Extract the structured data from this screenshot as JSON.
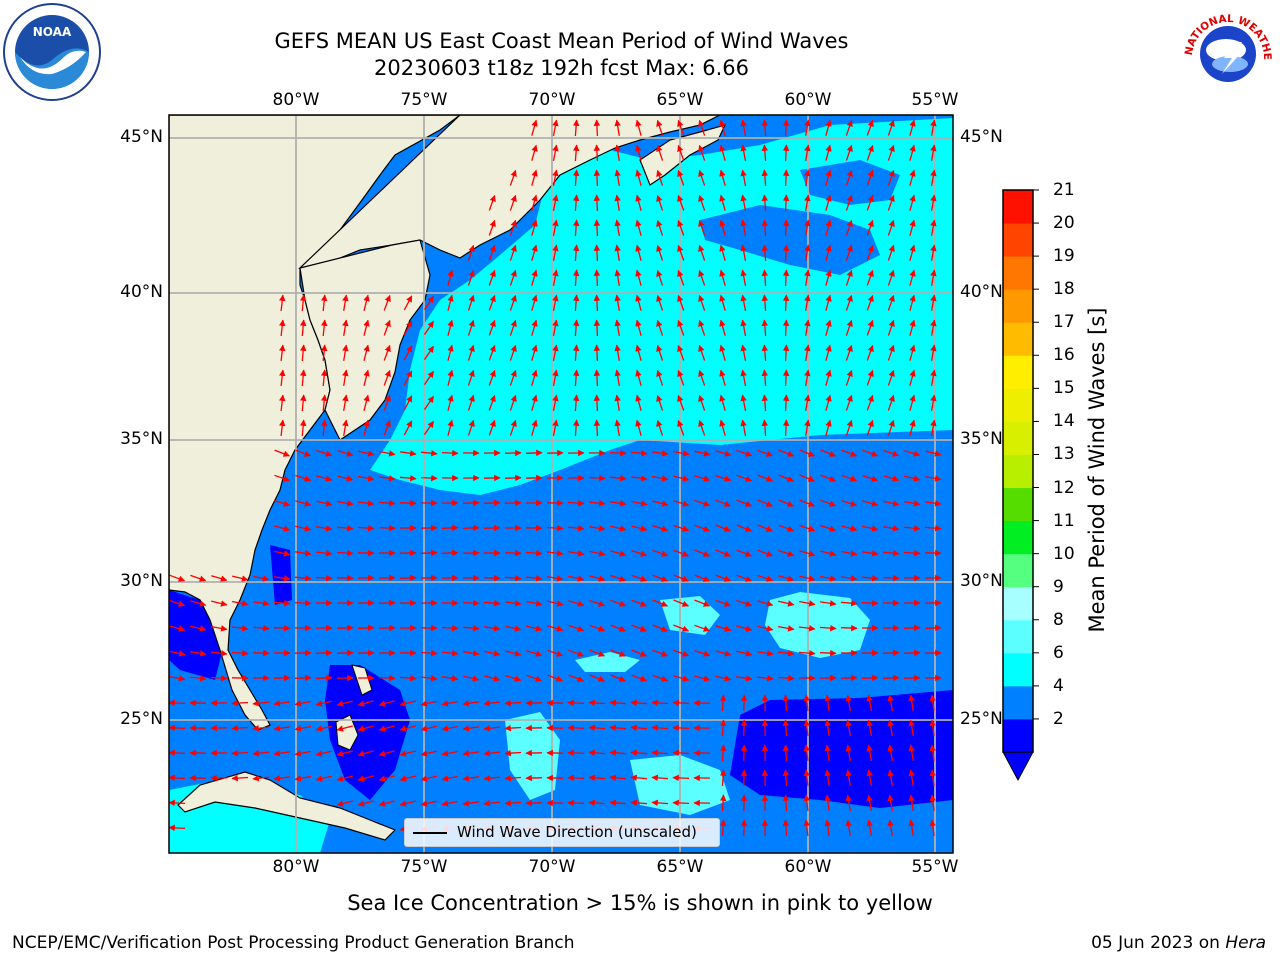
{
  "title": {
    "line1": "GEFS MEAN US East Coast Mean Period of Wind Waves",
    "line2": "20230603 t18z 192h fcst   Max: 6.66"
  },
  "map": {
    "lon_labels": [
      "80°W",
      "75°W",
      "70°W",
      "65°W",
      "60°W",
      "55°W"
    ],
    "lat_labels": [
      "45°N",
      "40°N",
      "35°N",
      "30°N",
      "25°N"
    ],
    "extent": {
      "lon": [
        -85,
        -54.3
      ],
      "lat": [
        20.6,
        45.8
      ]
    },
    "colors": {
      "land": "#efefdc",
      "grid": "#b0b0b0",
      "arrow": "#ff0000",
      "coast": "#000000"
    }
  },
  "colorbar": {
    "title": "Mean Period of Wind Waves [s]",
    "labels": [
      "21",
      "20",
      "19",
      "18",
      "17",
      "16",
      "15",
      "14",
      "13",
      "12",
      "11",
      "10",
      "9",
      "8",
      "6",
      "4",
      "2"
    ],
    "bins": [
      {
        "lo": 0,
        "hi": 2,
        "color": "#0000ff"
      },
      {
        "lo": 2,
        "hi": 4,
        "color": "#0080ff"
      },
      {
        "lo": 4,
        "hi": 6,
        "color": "#00ffff"
      },
      {
        "lo": 6,
        "hi": 8,
        "color": "#5cffff"
      },
      {
        "lo": 8,
        "hi": 9,
        "color": "#a8ffff"
      },
      {
        "lo": 9,
        "hi": 10,
        "color": "#55ff7f"
      },
      {
        "lo": 10,
        "hi": 11,
        "color": "#00ee22"
      },
      {
        "lo": 11,
        "hi": 12,
        "color": "#55dd00"
      },
      {
        "lo": 12,
        "hi": 13,
        "color": "#b8ee00"
      },
      {
        "lo": 13,
        "hi": 14,
        "color": "#d8f000"
      },
      {
        "lo": 14,
        "hi": 15,
        "color": "#eeee00"
      },
      {
        "lo": 15,
        "hi": 16,
        "color": "#ffee00"
      },
      {
        "lo": 16,
        "hi": 17,
        "color": "#ffbb00"
      },
      {
        "lo": 17,
        "hi": 18,
        "color": "#ff9900"
      },
      {
        "lo": 18,
        "hi": 19,
        "color": "#ff7700"
      },
      {
        "lo": 19,
        "hi": 20,
        "color": "#ff4400"
      },
      {
        "lo": 20,
        "hi": 21,
        "color": "#ff1100"
      }
    ]
  },
  "legend": {
    "label": "Wind Wave Direction (unscaled)"
  },
  "subtitle": "Sea Ice Concentration > 15% is shown in pink to yellow",
  "footer": {
    "left": "NCEP/EMC/Verification Post Processing Product Generation Branch",
    "right_date": "05 Jun 2023 on ",
    "right_host": "Hera"
  },
  "logos": {
    "left": "NOAA",
    "right_text": "NATIONAL WEATHER SERVICE"
  }
}
